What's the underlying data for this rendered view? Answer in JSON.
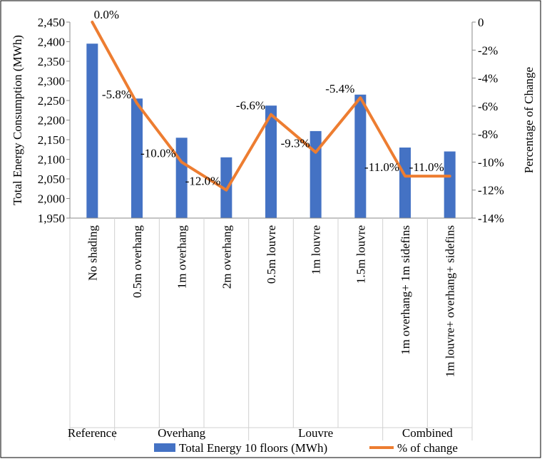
{
  "chart_data": {
    "type": "bar",
    "categories": [
      "No shading",
      "0.5m overhang",
      "1m overhang",
      "2m overhang",
      "0.5m louvre",
      "1m louvre",
      "1.5m louvre",
      "1m overhang+ 1m sidefins",
      "1m louvre+ overhang+ sidefins"
    ],
    "groups": [
      "Reference",
      "Overhang",
      "Louvre",
      "Combined"
    ],
    "group_spans": [
      1,
      3,
      3,
      2
    ],
    "series": [
      {
        "name": "Total Energy 10 floors (MWh)",
        "type": "bar",
        "axis": "left",
        "color": "#4472c4",
        "values": [
          2395,
          2255,
          2155,
          2105,
          2237,
          2172,
          2265,
          2130,
          2120
        ]
      },
      {
        "name": "% of change",
        "type": "line",
        "axis": "right",
        "color": "#ed7d31",
        "values": [
          0.0,
          -5.8,
          -10.0,
          -12.0,
          -6.6,
          -9.3,
          -5.4,
          -11.0,
          -11.0
        ],
        "labels": [
          "0.0%",
          "-5.8%",
          "-10.0%",
          "-12.0%",
          "-6.6%",
          "-9.3%",
          "-5.4%",
          "-11.0%",
          "-11.0%"
        ]
      }
    ],
    "ylabel": "Total Energy Consumption (MWh)",
    "y2label": "Percentage of Change",
    "ylim": [
      1950,
      2450
    ],
    "y2lim": [
      -14,
      0
    ],
    "yticks": [
      "1,950",
      "2,000",
      "2,050",
      "2,100",
      "2,150",
      "2,200",
      "2,250",
      "2,300",
      "2,350",
      "2,400",
      "2,450"
    ],
    "y2ticks": [
      "0",
      "-2%",
      "-4%",
      "-6%",
      "-8%",
      "-10%",
      "-12%",
      "-14%"
    ],
    "grid": false,
    "legend": "bottom"
  }
}
